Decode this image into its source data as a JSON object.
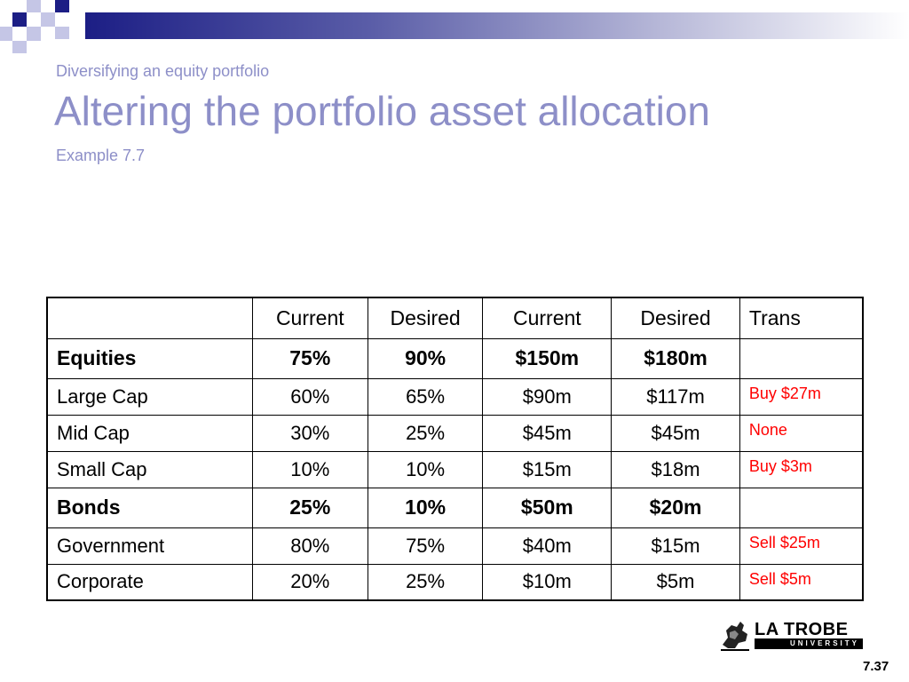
{
  "slide": {
    "subtitle": "Diversifying an equity portfolio",
    "title": "Altering the portfolio asset allocation",
    "example": "Example 7.7",
    "page_number": "7.37",
    "accent_color": "#8d8fc8",
    "theme_dark": "#1c1e85"
  },
  "table": {
    "headers": [
      "",
      "Current",
      "Desired",
      "Current",
      "Desired",
      "Trans"
    ],
    "rows": [
      {
        "label": "Equities",
        "current_pct": "75%",
        "desired_pct": "90%",
        "current_val": "$150m",
        "desired_val": "$180m",
        "trans": ""
      },
      {
        "label": "Large Cap",
        "current_pct": "60%",
        "desired_pct": "65%",
        "current_val": "$90m",
        "desired_val": "$117m",
        "trans": "Buy $27m"
      },
      {
        "label": "Mid Cap",
        "current_pct": "30%",
        "desired_pct": "25%",
        "current_val": "$45m",
        "desired_val": "$45m",
        "trans": "None"
      },
      {
        "label": "Small Cap",
        "current_pct": "10%",
        "desired_pct": "10%",
        "current_val": "$15m",
        "desired_val": "$18m",
        "trans": "Buy $3m"
      },
      {
        "label": "Bonds",
        "current_pct": "25%",
        "desired_pct": "10%",
        "current_val": "$50m",
        "desired_val": "$20m",
        "trans": ""
      },
      {
        "label": "Government",
        "current_pct": "80%",
        "desired_pct": "75%",
        "current_val": "$40m",
        "desired_val": "$15m",
        "trans": "Sell $25m"
      },
      {
        "label": "Corporate",
        "current_pct": "20%",
        "desired_pct": "25%",
        "current_val": "$10m",
        "desired_val": "$5m",
        "trans": "Sell $5m"
      }
    ],
    "trans_color": "#ff0000"
  },
  "logo": {
    "name": "LA TROBE",
    "tagline": "UNIVERSITY",
    "icon": "crest-icon"
  }
}
